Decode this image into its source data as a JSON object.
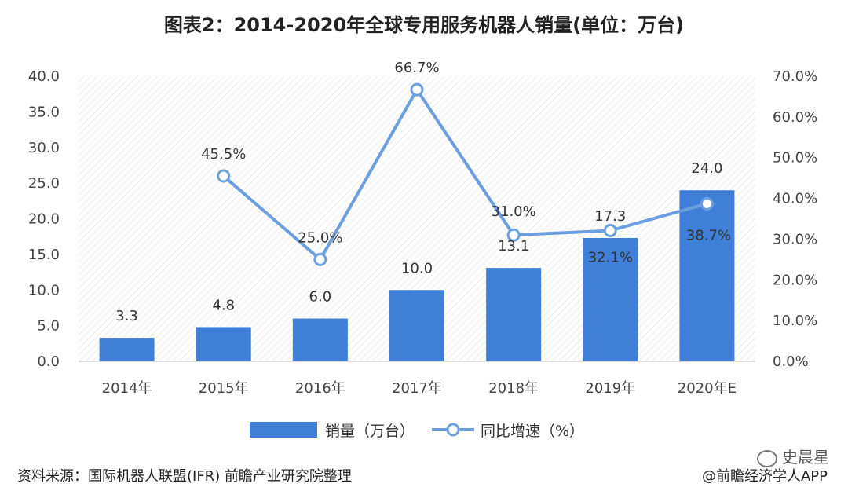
{
  "title": "图表2：2014-2020年全球专用服务机器人销量(单位：万台)",
  "chart_data": {
    "type": "bar+line",
    "categories": [
      "2014年",
      "2015年",
      "2016年",
      "2017年",
      "2018年",
      "2019年",
      "2020年E"
    ],
    "bar_series": {
      "name": "销量（万台）",
      "values": [
        3.3,
        4.8,
        6.0,
        10.0,
        13.1,
        17.3,
        24.0
      ],
      "color": "#3f7fd8"
    },
    "line_series": {
      "name": "同比增速（%）",
      "values": [
        null,
        45.5,
        25.0,
        66.7,
        31.0,
        32.1,
        38.7
      ],
      "color": "#6b9fe0"
    },
    "y_left": {
      "ticks": [
        "0.0",
        "5.0",
        "10.0",
        "15.0",
        "20.0",
        "25.0",
        "30.0",
        "35.0",
        "40.0"
      ],
      "lim": [
        0,
        40
      ]
    },
    "y_right": {
      "ticks": [
        "0.0%",
        "10.0%",
        "20.0%",
        "30.0%",
        "40.0%",
        "50.0%",
        "60.0%",
        "70.0%"
      ],
      "lim": [
        0,
        70
      ]
    },
    "bar_labels": [
      "3.3",
      "4.8",
      "6.0",
      "10.0",
      "13.1",
      "17.3",
      "24.0"
    ],
    "line_labels": [
      "",
      "45.5%",
      "25.0%",
      "66.7%",
      "31.0%",
      "32.1%",
      "38.7%"
    ],
    "legend_position": "bottom-center"
  },
  "footer": {
    "source": "资料来源：国际机器人联盟(IFR)  前瞻产业研究院整理",
    "credit": "@前瞻经济学人APP",
    "wechat": "史晨星"
  }
}
